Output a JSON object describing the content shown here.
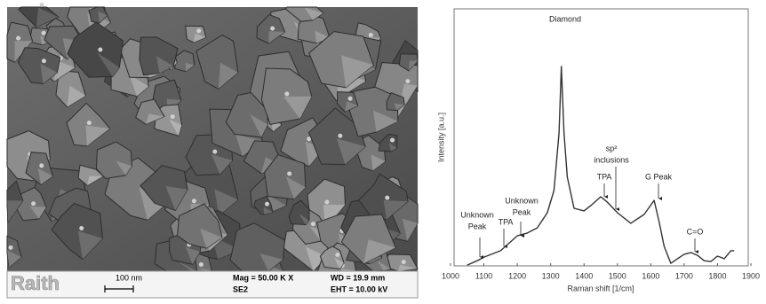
{
  "sem_image": {
    "logo": "Raith",
    "scale_bar": "100 nm",
    "magnification": "Mag =  50.00 K X",
    "detector": "SE2",
    "working_distance": "WD = 19.9 mm",
    "voltage": "EHT = 10.00 kV"
  },
  "chart_data": {
    "type": "line",
    "x_label": "Raman shift [1/cm]",
    "y_label": "Intensity [a.u.]",
    "x": [
      1050,
      1080,
      1100,
      1150,
      1200,
      1230,
      1260,
      1290,
      1310,
      1325,
      1332,
      1340,
      1350,
      1370,
      1400,
      1420,
      1450,
      1470,
      1500,
      1540,
      1580,
      1610,
      1625,
      1640,
      1660,
      1680,
      1700,
      1720,
      1740,
      1760,
      1780,
      1800,
      1820,
      1840,
      1850
    ],
    "values": [
      0.3,
      2,
      3.4,
      5.9,
      11.7,
      12.8,
      14.8,
      20.7,
      29.3,
      51.7,
      77.6,
      51.7,
      34.5,
      22.4,
      21.4,
      23.4,
      26.9,
      24.8,
      20.7,
      16.6,
      20,
      25.5,
      17.2,
      7.6,
      1,
      2.8,
      4.5,
      5.2,
      4.1,
      2,
      1.7,
      3.8,
      2.8,
      5.9,
      5.9
    ],
    "color": "#333333",
    "xlim": [
      1000,
      1900
    ],
    "xticks": [
      1000,
      1100,
      1200,
      1300,
      1400,
      1500,
      1600,
      1700,
      1800,
      1900
    ],
    "ylim": [
      0,
      100
    ],
    "annotations": [
      [
        "Unknown",
        "Peak"
      ],
      [
        "TPA"
      ],
      [
        "Unknown",
        "Peak"
      ],
      [
        "Diamond"
      ],
      [
        "sp²",
        "inclusions"
      ],
      [
        "TPA"
      ],
      [
        "G Peak"
      ],
      [
        "C=O"
      ]
    ]
  }
}
